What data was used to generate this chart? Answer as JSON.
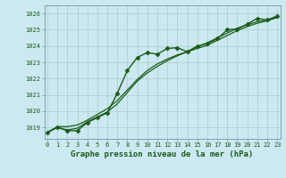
{
  "title": "Graphe pression niveau de la mer (hPa)",
  "bg_color": "#cce8f0",
  "grid_color": "#aacccc",
  "line_color": "#1a5c1a",
  "x_ticks": [
    0,
    1,
    2,
    3,
    4,
    5,
    6,
    7,
    8,
    9,
    10,
    11,
    12,
    13,
    14,
    15,
    16,
    17,
    18,
    19,
    20,
    21,
    22,
    23
  ],
  "y_ticks": [
    1019,
    1020,
    1021,
    1022,
    1023,
    1024,
    1025,
    1026
  ],
  "ylim": [
    1018.3,
    1026.5
  ],
  "xlim": [
    -0.3,
    23.3
  ],
  "series": [
    {
      "x": [
        0,
        1,
        2,
        3,
        4,
        5,
        6,
        7,
        8,
        9,
        10,
        11,
        12,
        13,
        14,
        15,
        16,
        17,
        18,
        19,
        20,
        21,
        22,
        23
      ],
      "y": [
        1018.7,
        1019.0,
        1018.8,
        1018.8,
        1019.3,
        1019.6,
        1019.9,
        1021.1,
        1022.5,
        1023.3,
        1023.6,
        1023.5,
        1023.85,
        1023.9,
        1023.65,
        1024.0,
        1024.15,
        1024.45,
        1025.0,
        1025.05,
        1025.35,
        1025.7,
        1025.6,
        1025.85
      ],
      "marker": "D",
      "markersize": 2.5,
      "linewidth": 1.0
    },
    {
      "x": [
        0,
        1,
        2,
        3,
        4,
        5,
        6,
        7,
        8,
        9,
        10,
        11,
        12,
        13,
        14,
        15,
        16,
        17,
        18,
        19,
        20,
        21,
        22,
        23
      ],
      "y": [
        1018.7,
        1019.05,
        1019.05,
        1019.15,
        1019.45,
        1019.8,
        1020.15,
        1020.65,
        1021.3,
        1021.95,
        1022.5,
        1022.9,
        1023.2,
        1023.45,
        1023.65,
        1023.85,
        1024.05,
        1024.35,
        1024.65,
        1024.95,
        1025.2,
        1025.4,
        1025.55,
        1025.75
      ],
      "marker": null,
      "markersize": 0,
      "linewidth": 0.9
    },
    {
      "x": [
        0,
        1,
        2,
        3,
        4,
        5,
        6,
        7,
        8,
        9,
        10,
        11,
        12,
        13,
        14,
        15,
        16,
        17,
        18,
        19,
        20,
        21,
        22,
        23
      ],
      "y": [
        1018.7,
        1019.0,
        1018.85,
        1018.95,
        1019.35,
        1019.65,
        1019.95,
        1020.45,
        1021.15,
        1021.85,
        1022.35,
        1022.75,
        1023.1,
        1023.4,
        1023.65,
        1023.95,
        1024.2,
        1024.5,
        1024.8,
        1025.1,
        1025.3,
        1025.5,
        1025.6,
        1025.8
      ],
      "marker": null,
      "markersize": 0,
      "linewidth": 0.9
    }
  ]
}
